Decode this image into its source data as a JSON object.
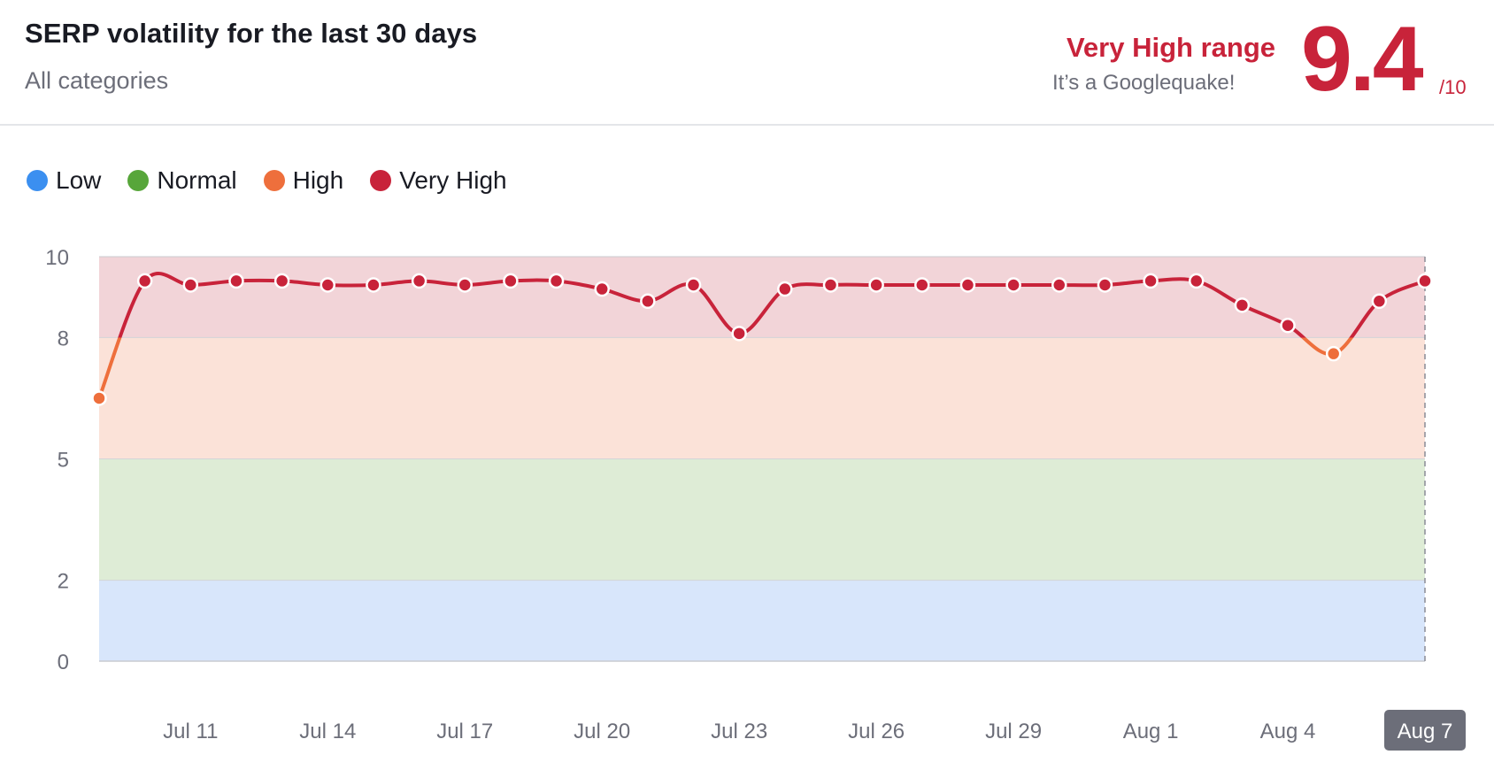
{
  "header": {
    "title": "SERP volatility for the last 30 days",
    "subtitle": "All categories",
    "range_title": "Very High range",
    "range_subtitle": "It’s a Googlequake!",
    "score": "9.4",
    "score_max": "/10"
  },
  "legend": [
    {
      "label": "Low",
      "color": "#3b8ff0"
    },
    {
      "label": "Normal",
      "color": "#57a63a"
    },
    {
      "label": "High",
      "color": "#ee6f3c"
    },
    {
      "label": "Very High",
      "color": "#c8233a"
    }
  ],
  "chart_data": {
    "type": "line",
    "title": "SERP volatility for the last 30 days",
    "xlabel": "",
    "ylabel": "",
    "ylim": [
      0,
      10
    ],
    "y_ticks": [
      "0",
      "2",
      "5",
      "8",
      "10"
    ],
    "x_tick_labels": [
      "Jul 11",
      "Jul 14",
      "Jul 17",
      "Jul 20",
      "Jul 23",
      "Jul 26",
      "Jul 29",
      "Aug 1",
      "Aug 4",
      "Aug 7"
    ],
    "highlighted_x_label": "Aug 7",
    "bands": [
      {
        "name": "Low",
        "from": 0,
        "to": 2,
        "color": "#d8e6fb"
      },
      {
        "name": "Normal",
        "from": 2,
        "to": 5,
        "color": "#deecd6"
      },
      {
        "name": "High",
        "from": 5,
        "to": 8,
        "color": "#fbe2d8"
      },
      {
        "name": "Very High",
        "from": 8,
        "to": 10,
        "color": "#f2d4d8"
      }
    ],
    "x": [
      "Jul 9",
      "Jul 10",
      "Jul 11",
      "Jul 12",
      "Jul 13",
      "Jul 14",
      "Jul 15",
      "Jul 16",
      "Jul 17",
      "Jul 18",
      "Jul 19",
      "Jul 20",
      "Jul 21",
      "Jul 22",
      "Jul 23",
      "Jul 24",
      "Jul 25",
      "Jul 26",
      "Jul 27",
      "Jul 28",
      "Jul 29",
      "Jul 30",
      "Jul 31",
      "Aug 1",
      "Aug 2",
      "Aug 3",
      "Aug 4",
      "Aug 5",
      "Aug 6",
      "Aug 7"
    ],
    "values": [
      6.5,
      9.4,
      9.3,
      9.4,
      9.4,
      9.3,
      9.3,
      9.4,
      9.3,
      9.4,
      9.4,
      9.2,
      8.9,
      9.3,
      8.1,
      9.2,
      9.3,
      9.3,
      9.3,
      9.3,
      9.3,
      9.3,
      9.3,
      9.4,
      9.4,
      8.8,
      8.3,
      7.6,
      8.9,
      9.4
    ],
    "line_color_very_high": "#c8233a",
    "line_color_high": "#ee6f3c"
  }
}
